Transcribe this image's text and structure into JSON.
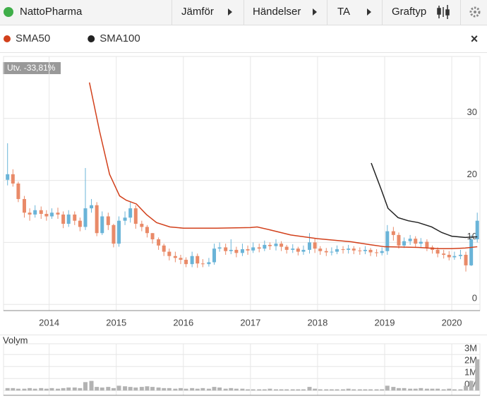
{
  "toolbar": {
    "name": "NattoPharma",
    "buttons": [
      "Jämför",
      "Händelser",
      "TA",
      "Graftyp"
    ]
  },
  "chart_data": [
    {
      "type": "candlestick",
      "annotation": "Utv. -33,81%",
      "up_color": "#6ab4d8",
      "down_color": "#e98a68",
      "x": [
        2013.38,
        2013.46,
        2013.54,
        2013.63,
        2013.71,
        2013.79,
        2013.88,
        2013.96,
        2014.04,
        2014.13,
        2014.21,
        2014.29,
        2014.38,
        2014.46,
        2014.54,
        2014.63,
        2014.71,
        2014.79,
        2014.88,
        2014.96,
        2015.04,
        2015.13,
        2015.21,
        2015.29,
        2015.38,
        2015.46,
        2015.54,
        2015.63,
        2015.71,
        2015.79,
        2015.88,
        2015.96,
        2016.04,
        2016.13,
        2016.21,
        2016.29,
        2016.38,
        2016.46,
        2016.54,
        2016.63,
        2016.71,
        2016.79,
        2016.88,
        2016.96,
        2017.04,
        2017.13,
        2017.21,
        2017.29,
        2017.38,
        2017.46,
        2017.54,
        2017.63,
        2017.71,
        2017.79,
        2017.88,
        2017.96,
        2018.04,
        2018.13,
        2018.21,
        2018.29,
        2018.38,
        2018.46,
        2018.54,
        2018.63,
        2018.71,
        2018.79,
        2018.88,
        2018.96,
        2019.04,
        2019.13,
        2019.21,
        2019.29,
        2019.38,
        2019.46,
        2019.54,
        2019.63,
        2019.71,
        2019.79,
        2019.88,
        2019.96,
        2020.04,
        2020.13,
        2020.21,
        2020.29,
        2020.38
      ],
      "open": [
        20.1,
        21,
        19.5,
        17,
        14.8,
        14.5,
        15.2,
        14.6,
        14.2,
        14.8,
        14.5,
        13,
        14.5,
        13.5,
        12.5,
        15.5,
        16,
        11.5,
        14.2,
        12.8,
        9.8,
        13.5,
        14,
        15.5,
        13,
        12.5,
        11.5,
        10.5,
        9.5,
        8.5,
        7.8,
        7.5,
        7.2,
        6.5,
        7.8,
        6.6,
        6.5,
        6.8,
        9,
        9.2,
        8.6,
        8.8,
        8.3,
        8.9,
        8.7,
        9.2,
        9,
        9.6,
        9.4,
        9.8,
        9.3,
        8.8,
        9,
        8.5,
        8.8,
        10,
        9,
        8.6,
        8.4,
        8.5,
        8.9,
        8.8,
        9,
        8.7,
        8.6,
        8.8,
        8.4,
        8.3,
        8.6,
        11.8,
        11.2,
        9.5,
        10.2,
        10.6,
        9.8,
        10.1,
        9.2,
        8.8,
        8.2,
        8,
        7.6,
        7.8,
        8,
        6.3,
        10.5
      ],
      "high": [
        26,
        21.8,
        19.8,
        17.5,
        15.5,
        16,
        15.8,
        15.2,
        15.5,
        15.6,
        15,
        15.2,
        15,
        14,
        22,
        17,
        16.5,
        15,
        14.8,
        13,
        14.2,
        15,
        16.5,
        16,
        13.5,
        12.8,
        11.5,
        10.8,
        9.8,
        9,
        8.5,
        8,
        7.6,
        8.5,
        8.2,
        7.3,
        7.5,
        9.8,
        10,
        9.8,
        10.5,
        9.3,
        9.8,
        9.5,
        10,
        9.8,
        10.3,
        10,
        10.5,
        10.2,
        9.6,
        9.7,
        9.3,
        9.5,
        11.5,
        10.6,
        9.4,
        9.1,
        9.2,
        9.5,
        9.4,
        9.6,
        9.4,
        9.2,
        9.4,
        9.1,
        8.9,
        9.2,
        12.8,
        12.5,
        11.6,
        10.8,
        11.2,
        11,
        10.7,
        10.5,
        9.5,
        9.2,
        8.8,
        8.6,
        8.5,
        8.8,
        8.5,
        11.2,
        14.8
      ],
      "low": [
        19.2,
        19,
        16.5,
        14,
        13.5,
        14,
        13.8,
        13.5,
        13.8,
        13.8,
        12.3,
        12.5,
        12.8,
        11.8,
        12,
        14.8,
        11,
        11.2,
        12,
        9.2,
        9.3,
        12.8,
        13.2,
        12.2,
        11.8,
        10.8,
        9.8,
        8.8,
        7.8,
        7.1,
        6.8,
        6.5,
        6,
        6,
        5.9,
        6,
        6.1,
        6.4,
        8.5,
        8,
        8.1,
        7.6,
        7.8,
        8,
        8.3,
        8.4,
        8.6,
        8.8,
        8.7,
        8.6,
        8.2,
        8.3,
        7.9,
        8,
        8.2,
        8.3,
        8,
        7.8,
        7.9,
        8.1,
        8.2,
        8.2,
        8.1,
        8,
        8.1,
        7.8,
        7.7,
        7.9,
        8,
        10.3,
        9,
        9.1,
        9.6,
        9.2,
        9.2,
        8.6,
        8.2,
        7.6,
        7.4,
        7.1,
        7.2,
        7.3,
        5.3,
        6.2,
        10
      ],
      "close": [
        21,
        19.5,
        17,
        14.8,
        14.5,
        15.2,
        14.6,
        14.2,
        14.8,
        14.5,
        13,
        14.5,
        13.5,
        12.5,
        15.5,
        16,
        11.5,
        14.2,
        12.8,
        9.8,
        13.5,
        14,
        15.5,
        13,
        12.5,
        11.5,
        10.5,
        9.5,
        8.5,
        7.8,
        7.5,
        7.2,
        6.5,
        7.8,
        6.6,
        6.5,
        6.8,
        9,
        9.2,
        8.6,
        8.8,
        8.3,
        8.9,
        8.7,
        9.2,
        9,
        9.6,
        9.4,
        9.8,
        9.3,
        8.8,
        9,
        8.5,
        8.8,
        10,
        9,
        8.6,
        8.4,
        8.5,
        8.9,
        8.8,
        9,
        8.7,
        8.6,
        8.8,
        8.4,
        8.3,
        8.6,
        11.8,
        11.2,
        9.5,
        10.2,
        10.6,
        9.8,
        10.1,
        9.2,
        8.8,
        8.2,
        8,
        7.6,
        7.8,
        8,
        6.3,
        10.5,
        13.5
      ],
      "series": [
        {
          "name": "SMA50",
          "color": "#d2401b",
          "x": [
            2014.6,
            2014.75,
            2014.9,
            2015.05,
            2015.15,
            2015.3,
            2015.45,
            2015.6,
            2015.8,
            2016,
            2016.5,
            2017,
            2017.1,
            2017.3,
            2017.6,
            2018,
            2018.5,
            2018.8,
            2019,
            2019.5,
            2019.8,
            2020,
            2020.2,
            2020.38
          ],
          "values": [
            35.8,
            28,
            21,
            17.5,
            16.8,
            16.2,
            14.5,
            13.2,
            12.5,
            12.3,
            12.3,
            12.4,
            12.5,
            12,
            11.2,
            10.6,
            10.1,
            9.6,
            9.3,
            9.2,
            9,
            9,
            9.1,
            9.3
          ]
        },
        {
          "name": "SMA100",
          "color": "#222222",
          "x": [
            2018.8,
            2018.95,
            2019.05,
            2019.2,
            2019.35,
            2019.5,
            2019.7,
            2019.85,
            2020,
            2020.2,
            2020.38
          ],
          "values": [
            22.8,
            18.5,
            15.5,
            14,
            13.5,
            13.2,
            12.5,
            11.6,
            11,
            10.8,
            10.9
          ]
        }
      ],
      "xlim": [
        2013.32,
        2020.42
      ],
      "xticks": [
        2014,
        2015,
        2016,
        2017,
        2018,
        2019,
        2020
      ],
      "ylim": [
        -1,
        40
      ],
      "yticks": [
        0,
        10,
        20,
        30
      ],
      "grid": true
    },
    {
      "type": "bar",
      "title": "Volym",
      "color": "#b3b3b3",
      "values": [
        0.2,
        0.2,
        0.15,
        0.15,
        0.2,
        0.15,
        0.2,
        0.15,
        0.2,
        0.15,
        0.2,
        0.25,
        0.25,
        0.2,
        0.7,
        0.8,
        0.3,
        0.25,
        0.3,
        0.2,
        0.4,
        0.35,
        0.3,
        0.25,
        0.3,
        0.35,
        0.3,
        0.25,
        0.2,
        0.2,
        0.15,
        0.2,
        0.15,
        0.2,
        0.15,
        0.2,
        0.15,
        0.3,
        0.25,
        0.15,
        0.2,
        0.15,
        0.15,
        0.1,
        0.1,
        0.1,
        0.1,
        0.15,
        0.1,
        0.1,
        0.1,
        0.1,
        0.1,
        0.1,
        0.3,
        0.15,
        0.1,
        0.1,
        0.1,
        0.1,
        0.1,
        0.15,
        0.1,
        0.1,
        0.1,
        0.1,
        0.1,
        0.1,
        0.4,
        0.3,
        0.2,
        0.2,
        0.15,
        0.15,
        0.2,
        0.15,
        0.15,
        0.15,
        0.1,
        0.15,
        0.1,
        0.1,
        0.4,
        0.8,
        2.6
      ],
      "ylim": [
        -0.4,
        3.9
      ],
      "yticks": [
        {
          "value": 0,
          "label": "0M"
        },
        {
          "value": 1,
          "label": "1M"
        },
        {
          "value": 2,
          "label": "2M"
        },
        {
          "value": 3,
          "label": "3M"
        }
      ],
      "grid": true
    }
  ]
}
